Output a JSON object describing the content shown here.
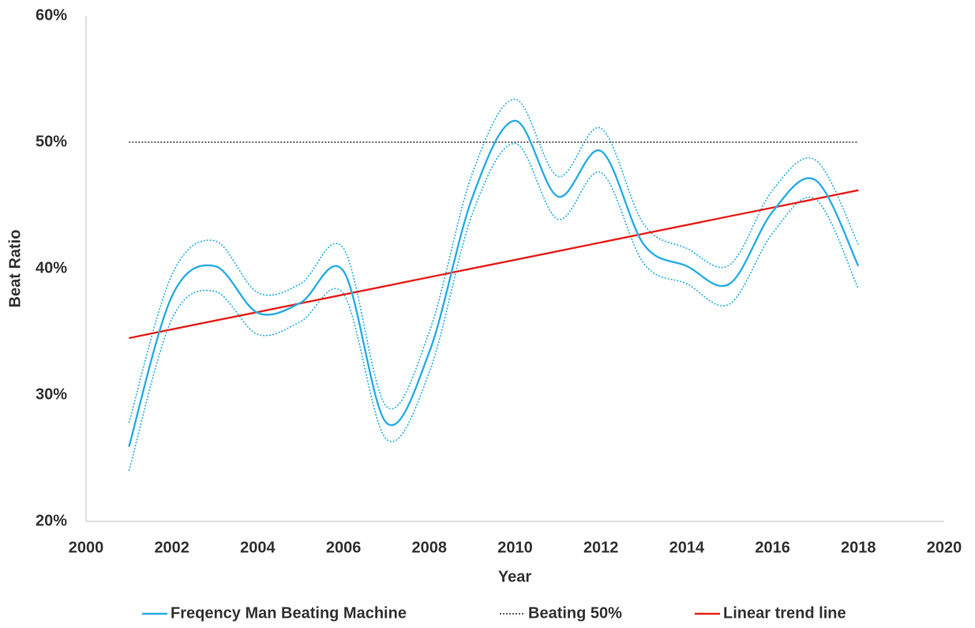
{
  "chart_data": {
    "type": "line",
    "x_label": "Year",
    "y_label": "Beat Ratio",
    "x": [
      2001,
      2002,
      2003,
      2004,
      2005,
      2006,
      2007,
      2008,
      2009,
      2010,
      2011,
      2012,
      2013,
      2014,
      2015,
      2016,
      2017,
      2018
    ],
    "series": [
      {
        "name": "Freqency Man Beating Machine",
        "color": "#2aaee3",
        "style": "solid",
        "smooth": true,
        "values": [
          25.9,
          37.8,
          40.2,
          36.5,
          37.3,
          39.8,
          27.8,
          33.4,
          45.6,
          51.7,
          45.7,
          49.3,
          41.9,
          40.2,
          38.8,
          44.5,
          47.0,
          40.2
        ]
      },
      {
        "name": "Beating 50%",
        "color": "#333333",
        "style": "dotted",
        "smooth": false,
        "values": [
          50,
          50,
          50,
          50,
          50,
          50,
          50,
          50,
          50,
          50,
          50,
          50,
          50,
          50,
          50,
          50,
          50,
          50
        ]
      },
      {
        "name": "Linear trend line",
        "color": "#e8211b",
        "style": "solid",
        "smooth": false,
        "values": [
          34.5,
          35.19,
          35.88,
          36.56,
          37.25,
          37.94,
          38.63,
          39.32,
          40.01,
          40.69,
          41.38,
          42.07,
          42.76,
          43.45,
          44.14,
          44.82,
          45.51,
          46.2
        ]
      }
    ],
    "bands": {
      "color": "#2aaee3",
      "upper": [
        27.8,
        39.5,
        42.2,
        38.1,
        38.8,
        41.6,
        29.1,
        35.0,
        47.5,
        53.4,
        47.3,
        51.1,
        43.5,
        41.6,
        40.3,
        46.2,
        48.6,
        41.9
      ],
      "lower": [
        24.0,
        36.0,
        38.2,
        34.8,
        35.8,
        38.0,
        26.5,
        31.8,
        44.3,
        49.9,
        43.9,
        47.6,
        40.4,
        38.8,
        37.2,
        42.8,
        45.5,
        38.4
      ]
    },
    "xlim": [
      2000,
      2020
    ],
    "xticks": [
      2000,
      2002,
      2004,
      2006,
      2008,
      2010,
      2012,
      2014,
      2016,
      2018,
      2020
    ],
    "ylim": [
      20,
      60
    ],
    "yticks": [
      {
        "value": 20,
        "label": "20%"
      },
      {
        "value": 30,
        "label": "30%"
      },
      {
        "value": 40,
        "label": "40%"
      },
      {
        "value": 50,
        "label": "50%"
      },
      {
        "value": 60,
        "label": "60%"
      }
    ],
    "grid": false,
    "legend": "bottom"
  }
}
